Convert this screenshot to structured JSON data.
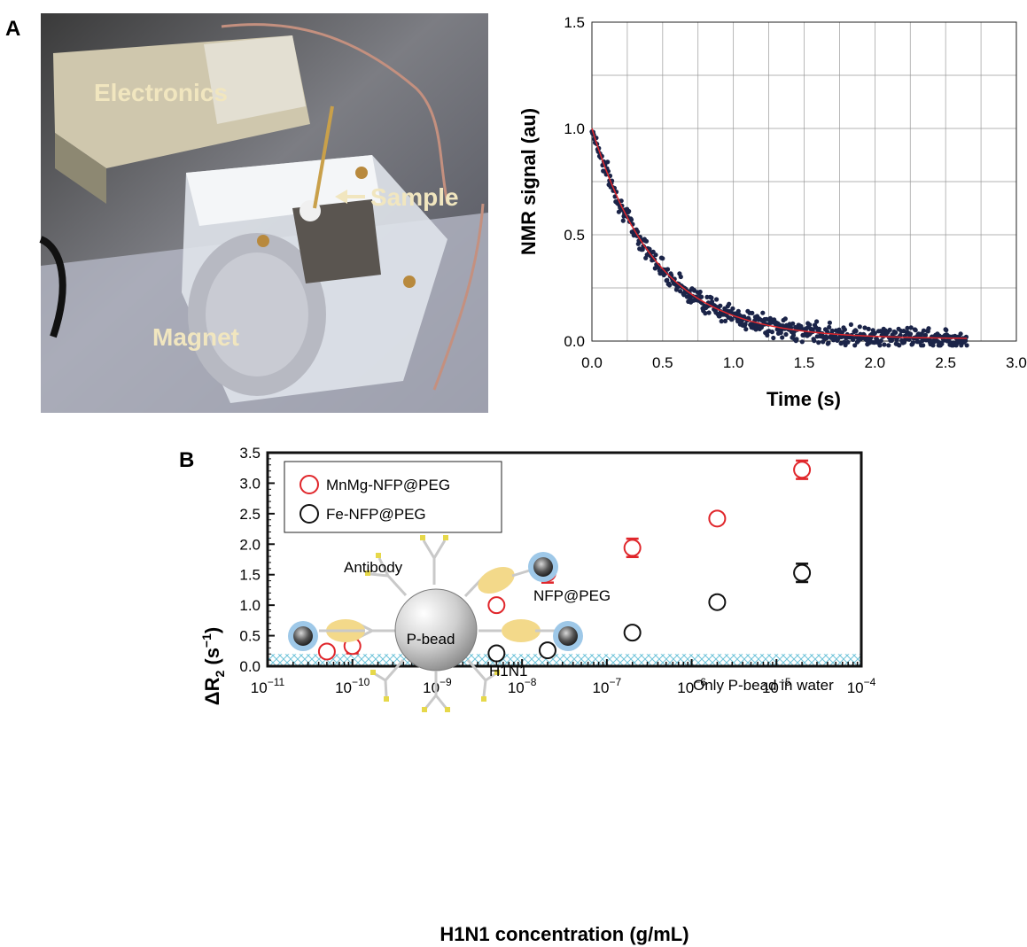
{
  "panel_labels": {
    "a": "A",
    "b": "B"
  },
  "photo": {
    "labels": {
      "electronics": "Electronics",
      "sample": "Sample",
      "magnet": "Magnet"
    }
  },
  "colors": {
    "red": "#e0262b",
    "black": "#111111",
    "fit": "#e0262b",
    "scatter": "#1b2448",
    "hatch": "#6fc3d9"
  },
  "chart_data": [
    {
      "type": "scatter",
      "title": "",
      "xlabel": "Time (s)",
      "ylabel": "NMR signal (au)",
      "xlim": [
        0,
        3.0
      ],
      "ylim": [
        0,
        1.5
      ],
      "xticks": [
        "0.0",
        "0.5",
        "1.0",
        "1.5",
        "2.0",
        "2.5",
        "3.0"
      ],
      "yticks": [
        "0.0",
        "0.5",
        "1.0",
        "1.5"
      ],
      "grid": true,
      "series": [
        {
          "name": "",
          "kind": "points",
          "description_x_range": [
            0,
            2.65
          ],
          "x": [
            0.0,
            0.05,
            0.1,
            0.15,
            0.2,
            0.25,
            0.3,
            0.4,
            0.5,
            0.6,
            0.7,
            0.8,
            0.9,
            1.0,
            1.2,
            1.4,
            1.6,
            1.8,
            2.0,
            2.2,
            2.4,
            2.65
          ],
          "y": [
            1.0,
            0.9,
            0.8,
            0.72,
            0.63,
            0.56,
            0.5,
            0.4,
            0.32,
            0.26,
            0.21,
            0.17,
            0.14,
            0.11,
            0.08,
            0.05,
            0.04,
            0.03,
            0.02,
            0.02,
            0.015,
            0.01
          ]
        },
        {
          "name": "",
          "kind": "fit",
          "amplitude": 0.99,
          "rate": 2.2,
          "offset": 0.01
        }
      ]
    },
    {
      "type": "scatter",
      "title": "",
      "xlabel": "H1N1 concentration (g/mL)",
      "ylabel_prefix": "ΔR",
      "ylabel_sub": "2",
      "ylabel_unit": " (s",
      "ylabel_sup": "−1",
      "ylabel_close": ")",
      "xscale": "log",
      "xlim": [
        "1e-11",
        "1e-4"
      ],
      "ylim": [
        0,
        3.5
      ],
      "xticks_base": "10",
      "xticks_exp": [
        "−11",
        "−10",
        "−9",
        "−8",
        "−7",
        "−6",
        "−5",
        "−4"
      ],
      "yticks": [
        "0.0",
        "0.5",
        "1.0",
        "1.5",
        "2.0",
        "2.5",
        "3.0",
        "3.5"
      ],
      "legend_position": "top-left",
      "series": [
        {
          "name": "MnMg-NFP@PEG",
          "color": "#e0262b",
          "x": [
            5e-11,
            1e-10,
            5e-10,
            1e-09,
            5e-09,
            2e-08,
            2e-07,
            2e-06,
            2e-05
          ],
          "y": [
            0.24,
            0.33,
            0.31,
            0.61,
            1.0,
            1.53,
            1.94,
            2.42,
            3.22
          ],
          "err": [
            0,
            0.12,
            0.09,
            0.07,
            0,
            0.16,
            0.15,
            0.09,
            0.15
          ]
        },
        {
          "name": "Fe-NFP@PEG",
          "color": "#111111",
          "x": [
            5e-09,
            2e-08,
            2e-07,
            2e-06,
            2e-05
          ],
          "y": [
            0.21,
            0.26,
            0.55,
            1.05,
            1.53
          ],
          "err": [
            0.07,
            0.05,
            0.04,
            0.09,
            0.15
          ]
        }
      ],
      "band": {
        "label": "Only P-bead in water",
        "y_top": 0.2
      },
      "diagram": {
        "antibody": "Antibody",
        "nfp": "NFP@PEG",
        "bead": "P-bead",
        "virus": "H1N1"
      }
    }
  ]
}
